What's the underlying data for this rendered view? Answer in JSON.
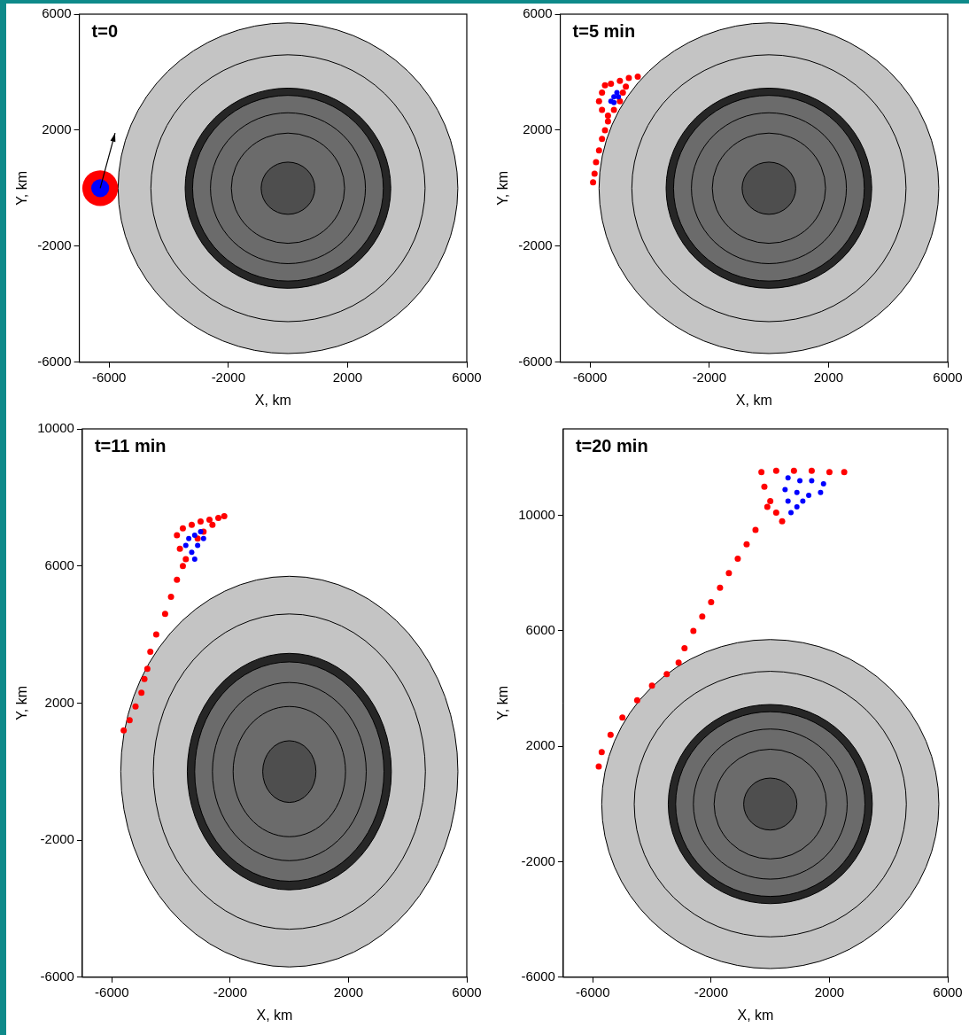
{
  "chart_data": [
    {
      "type": "scatter",
      "title": "t=0",
      "x_label": "X, km",
      "y_label": "Y, km",
      "xlim": [
        -7000,
        6000
      ],
      "xticks": [
        -6000,
        -2000,
        2000,
        6000
      ],
      "ylim": [
        -6000,
        6000
      ],
      "yticks": [
        -6000,
        -2000,
        2000,
        6000
      ],
      "grid": false,
      "legend": false,
      "planet": {
        "center": [
          0,
          0
        ],
        "layers": [
          {
            "radius": 5700,
            "color": "#c4c4c4"
          },
          {
            "radius": 3450,
            "color": "#262626"
          },
          {
            "radius": 3200,
            "color": "#6b6b6b"
          },
          {
            "radius": 900,
            "color": "#4e4e4e"
          }
        ],
        "contours": [
          5700,
          4600,
          3450,
          3200,
          2600,
          1900,
          900
        ]
      },
      "arrow": {
        "from": [
          -6300,
          0
        ],
        "to": [
          -5800,
          1900
        ]
      },
      "series": [
        {
          "color": "#ff0000",
          "radius": 600,
          "values": [
            [
              -6300,
              0
            ]
          ]
        },
        {
          "color": "#0000ff",
          "radius": 300,
          "values": [
            [
              -6300,
              0
            ]
          ]
        }
      ]
    },
    {
      "type": "scatter",
      "title": "t=5 min",
      "x_label": "X, km",
      "y_label": "Y, km",
      "xlim": [
        -7000,
        6000
      ],
      "xticks": [
        -6000,
        -2000,
        2000,
        6000
      ],
      "ylim": [
        -6000,
        6000
      ],
      "yticks": [
        -6000,
        -2000,
        2000,
        6000
      ],
      "grid": false,
      "legend": false,
      "planet": {
        "center": [
          0,
          0
        ],
        "layers": [
          {
            "radius": 5700,
            "color": "#c4c4c4"
          },
          {
            "radius": 3450,
            "color": "#262626"
          },
          {
            "radius": 3200,
            "color": "#6b6b6b"
          },
          {
            "radius": 900,
            "color": "#4e4e4e"
          }
        ],
        "contours": [
          5700,
          4600,
          3450,
          3200,
          2600,
          1900,
          900
        ]
      },
      "series": [
        {
          "color": "#ff0000",
          "values": [
            [
              -5600,
              3300
            ],
            [
              -5500,
              3550
            ],
            [
              -5300,
              3600
            ],
            [
              -5000,
              3700
            ],
            [
              -4700,
              3800
            ],
            [
              -4400,
              3850
            ],
            [
              -4800,
              3500
            ],
            [
              -5700,
              3000
            ],
            [
              -5600,
              2700
            ],
            [
              -5400,
              2500
            ],
            [
              -5200,
              2700
            ],
            [
              -5000,
              3000
            ],
            [
              -4900,
              3300
            ],
            [
              -5400,
              2300
            ],
            [
              -5500,
              2000
            ],
            [
              -5600,
              1700
            ],
            [
              -5700,
              1300
            ],
            [
              -5800,
              900
            ],
            [
              -5850,
              500
            ],
            [
              -5900,
              200
            ]
          ]
        },
        {
          "color": "#0000ff",
          "values": [
            [
              -5200,
              3150
            ],
            [
              -5100,
              3300
            ],
            [
              -5300,
              3000
            ],
            [
              -5200,
              2950
            ],
            [
              -5050,
              3150
            ]
          ]
        }
      ]
    },
    {
      "type": "scatter",
      "title": "t=11 min",
      "x_label": "X, km",
      "y_label": "Y, km",
      "xlim": [
        -7000,
        6000
      ],
      "xticks": [
        -6000,
        -2000,
        2000,
        6000
      ],
      "ylim": [
        -6000,
        10000
      ],
      "yticks": [
        -6000,
        -2000,
        2000,
        6000,
        10000
      ],
      "grid": false,
      "legend": false,
      "planet": {
        "center": [
          0,
          0
        ],
        "layers": [
          {
            "radius": 5700,
            "color": "#c4c4c4"
          },
          {
            "radius": 3450,
            "color": "#262626"
          },
          {
            "radius": 3200,
            "color": "#6b6b6b"
          },
          {
            "radius": 900,
            "color": "#4e4e4e"
          }
        ],
        "contours": [
          5700,
          4600,
          3450,
          3200,
          2600,
          1900,
          900
        ]
      },
      "series": [
        {
          "color": "#ff0000",
          "values": [
            [
              -3800,
              6900
            ],
            [
              -3600,
              7100
            ],
            [
              -3300,
              7200
            ],
            [
              -3000,
              7300
            ],
            [
              -2700,
              7350
            ],
            [
              -2400,
              7400
            ],
            [
              -2200,
              7450
            ],
            [
              -3700,
              6500
            ],
            [
              -3500,
              6200
            ],
            [
              -3600,
              6000
            ],
            [
              -2900,
              7000
            ],
            [
              -2600,
              7200
            ],
            [
              -3100,
              6800
            ],
            [
              -3800,
              5600
            ],
            [
              -4000,
              5100
            ],
            [
              -4200,
              4600
            ],
            [
              -4500,
              4000
            ],
            [
              -4700,
              3500
            ],
            [
              -4800,
              3000
            ],
            [
              -4900,
              2700
            ],
            [
              -5000,
              2300
            ],
            [
              -5200,
              1900
            ],
            [
              -5400,
              1500
            ],
            [
              -5600,
              1200
            ]
          ]
        },
        {
          "color": "#0000ff",
          "values": [
            [
              -3500,
              6600
            ],
            [
              -3400,
              6800
            ],
            [
              -3200,
              6900
            ],
            [
              -3000,
              7000
            ],
            [
              -3300,
              6400
            ],
            [
              -3100,
              6600
            ],
            [
              -2900,
              6800
            ],
            [
              -3200,
              6200
            ]
          ]
        }
      ]
    },
    {
      "type": "scatter",
      "title": "t=20 min",
      "x_label": "X, km",
      "y_label": "Y, km",
      "xlim": [
        -7000,
        6000
      ],
      "xticks": [
        -6000,
        -2000,
        2000,
        6000
      ],
      "ylim": [
        -6000,
        13000
      ],
      "yticks": [
        -6000,
        -2000,
        2000,
        6000,
        10000
      ],
      "grid": false,
      "legend": false,
      "planet": {
        "center": [
          0,
          0
        ],
        "layers": [
          {
            "radius": 5700,
            "color": "#c4c4c4"
          },
          {
            "radius": 3450,
            "color": "#262626"
          },
          {
            "radius": 3200,
            "color": "#6b6b6b"
          },
          {
            "radius": 900,
            "color": "#4e4e4e"
          }
        ],
        "contours": [
          5700,
          4600,
          3450,
          3200,
          2600,
          1900,
          900
        ]
      },
      "series": [
        {
          "color": "#ff0000",
          "values": [
            [
              -300,
              11500
            ],
            [
              200,
              11550
            ],
            [
              800,
              11550
            ],
            [
              1400,
              11550
            ],
            [
              2000,
              11500
            ],
            [
              2500,
              11500
            ],
            [
              -200,
              11000
            ],
            [
              0,
              10500
            ],
            [
              200,
              10100
            ],
            [
              400,
              9800
            ],
            [
              -100,
              10300
            ],
            [
              -500,
              9500
            ],
            [
              -800,
              9000
            ],
            [
              -1100,
              8500
            ],
            [
              -1400,
              8000
            ],
            [
              -1700,
              7500
            ],
            [
              -2000,
              7000
            ],
            [
              -2300,
              6500
            ],
            [
              -2600,
              6000
            ],
            [
              -2900,
              5400
            ],
            [
              -3100,
              4900
            ],
            [
              -3500,
              4500
            ],
            [
              -4000,
              4100
            ],
            [
              -4500,
              3600
            ],
            [
              -5000,
              3000
            ],
            [
              -5400,
              2400
            ],
            [
              -5700,
              1800
            ],
            [
              -5800,
              1300
            ]
          ]
        },
        {
          "color": "#0000ff",
          "values": [
            [
              600,
              11300
            ],
            [
              1000,
              11200
            ],
            [
              1400,
              11200
            ],
            [
              1800,
              11100
            ],
            [
              500,
              10900
            ],
            [
              900,
              10800
            ],
            [
              1300,
              10700
            ],
            [
              1700,
              10800
            ],
            [
              600,
              10500
            ],
            [
              900,
              10300
            ],
            [
              700,
              10100
            ],
            [
              1100,
              10500
            ]
          ]
        }
      ]
    }
  ]
}
